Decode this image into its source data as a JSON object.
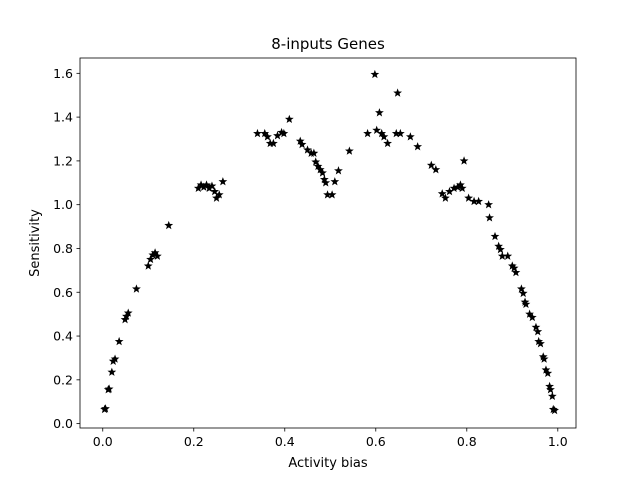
{
  "chart_data": {
    "type": "scatter",
    "title": "8-inputs Genes",
    "xlabel": "Activity bias",
    "ylabel": "Sensitivity",
    "xlim": [
      -0.05,
      1.04
    ],
    "ylim": [
      -0.02,
      1.67
    ],
    "xticks": [
      0.0,
      0.2,
      0.4,
      0.6,
      0.8,
      1.0
    ],
    "yticks": [
      0.0,
      0.2,
      0.4,
      0.6,
      0.8,
      1.0,
      1.2,
      1.4,
      1.6
    ],
    "grid": false,
    "marker": "star",
    "color": "#000000",
    "series": [
      {
        "points": [
          [
            0.004,
            0.065
          ],
          [
            0.006,
            0.068
          ],
          [
            0.012,
            0.155
          ],
          [
            0.014,
            0.158
          ],
          [
            0.02,
            0.235
          ],
          [
            0.023,
            0.285
          ],
          [
            0.027,
            0.295
          ],
          [
            0.036,
            0.375
          ],
          [
            0.049,
            0.475
          ],
          [
            0.052,
            0.49
          ],
          [
            0.056,
            0.505
          ],
          [
            0.074,
            0.615
          ],
          [
            0.1,
            0.72
          ],
          [
            0.105,
            0.75
          ],
          [
            0.11,
            0.77
          ],
          [
            0.115,
            0.78
          ],
          [
            0.12,
            0.765
          ],
          [
            0.145,
            0.905
          ],
          [
            0.21,
            1.075
          ],
          [
            0.216,
            1.09
          ],
          [
            0.222,
            1.08
          ],
          [
            0.228,
            1.09
          ],
          [
            0.234,
            1.075
          ],
          [
            0.24,
            1.085
          ],
          [
            0.246,
            1.06
          ],
          [
            0.25,
            1.03
          ],
          [
            0.256,
            1.045
          ],
          [
            0.264,
            1.105
          ],
          [
            0.34,
            1.325
          ],
          [
            0.356,
            1.325
          ],
          [
            0.362,
            1.31
          ],
          [
            0.368,
            1.28
          ],
          [
            0.375,
            1.28
          ],
          [
            0.384,
            1.315
          ],
          [
            0.393,
            1.33
          ],
          [
            0.398,
            1.325
          ],
          [
            0.41,
            1.39
          ],
          [
            0.434,
            1.29
          ],
          [
            0.438,
            1.275
          ],
          [
            0.45,
            1.25
          ],
          [
            0.458,
            1.235
          ],
          [
            0.464,
            1.235
          ],
          [
            0.468,
            1.195
          ],
          [
            0.473,
            1.175
          ],
          [
            0.478,
            1.16
          ],
          [
            0.483,
            1.145
          ],
          [
            0.487,
            1.115
          ],
          [
            0.49,
            1.1
          ],
          [
            0.494,
            1.045
          ],
          [
            0.504,
            1.045
          ],
          [
            0.51,
            1.105
          ],
          [
            0.518,
            1.155
          ],
          [
            0.542,
            1.245
          ],
          [
            0.582,
            1.325
          ],
          [
            0.598,
            1.595
          ],
          [
            0.602,
            1.34
          ],
          [
            0.608,
            1.42
          ],
          [
            0.613,
            1.325
          ],
          [
            0.618,
            1.31
          ],
          [
            0.626,
            1.28
          ],
          [
            0.645,
            1.325
          ],
          [
            0.648,
            1.51
          ],
          [
            0.654,
            1.325
          ],
          [
            0.676,
            1.31
          ],
          [
            0.692,
            1.265
          ],
          [
            0.722,
            1.18
          ],
          [
            0.732,
            1.16
          ],
          [
            0.746,
            1.05
          ],
          [
            0.753,
            1.03
          ],
          [
            0.762,
            1.06
          ],
          [
            0.772,
            1.075
          ],
          [
            0.78,
            1.08
          ],
          [
            0.786,
            1.09
          ],
          [
            0.79,
            1.075
          ],
          [
            0.794,
            1.2
          ],
          [
            0.804,
            1.03
          ],
          [
            0.816,
            1.015
          ],
          [
            0.826,
            1.015
          ],
          [
            0.848,
            1.0
          ],
          [
            0.85,
            0.94
          ],
          [
            0.862,
            0.855
          ],
          [
            0.87,
            0.81
          ],
          [
            0.874,
            0.795
          ],
          [
            0.878,
            0.765
          ],
          [
            0.89,
            0.765
          ],
          [
            0.9,
            0.72
          ],
          [
            0.904,
            0.71
          ],
          [
            0.908,
            0.69
          ],
          [
            0.92,
            0.615
          ],
          [
            0.924,
            0.595
          ],
          [
            0.928,
            0.555
          ],
          [
            0.93,
            0.545
          ],
          [
            0.938,
            0.5
          ],
          [
            0.944,
            0.485
          ],
          [
            0.952,
            0.44
          ],
          [
            0.956,
            0.42
          ],
          [
            0.958,
            0.375
          ],
          [
            0.962,
            0.365
          ],
          [
            0.968,
            0.305
          ],
          [
            0.97,
            0.295
          ],
          [
            0.974,
            0.245
          ],
          [
            0.978,
            0.23
          ],
          [
            0.982,
            0.17
          ],
          [
            0.984,
            0.155
          ],
          [
            0.988,
            0.125
          ],
          [
            0.99,
            0.065
          ],
          [
            0.993,
            0.06
          ]
        ]
      }
    ]
  }
}
